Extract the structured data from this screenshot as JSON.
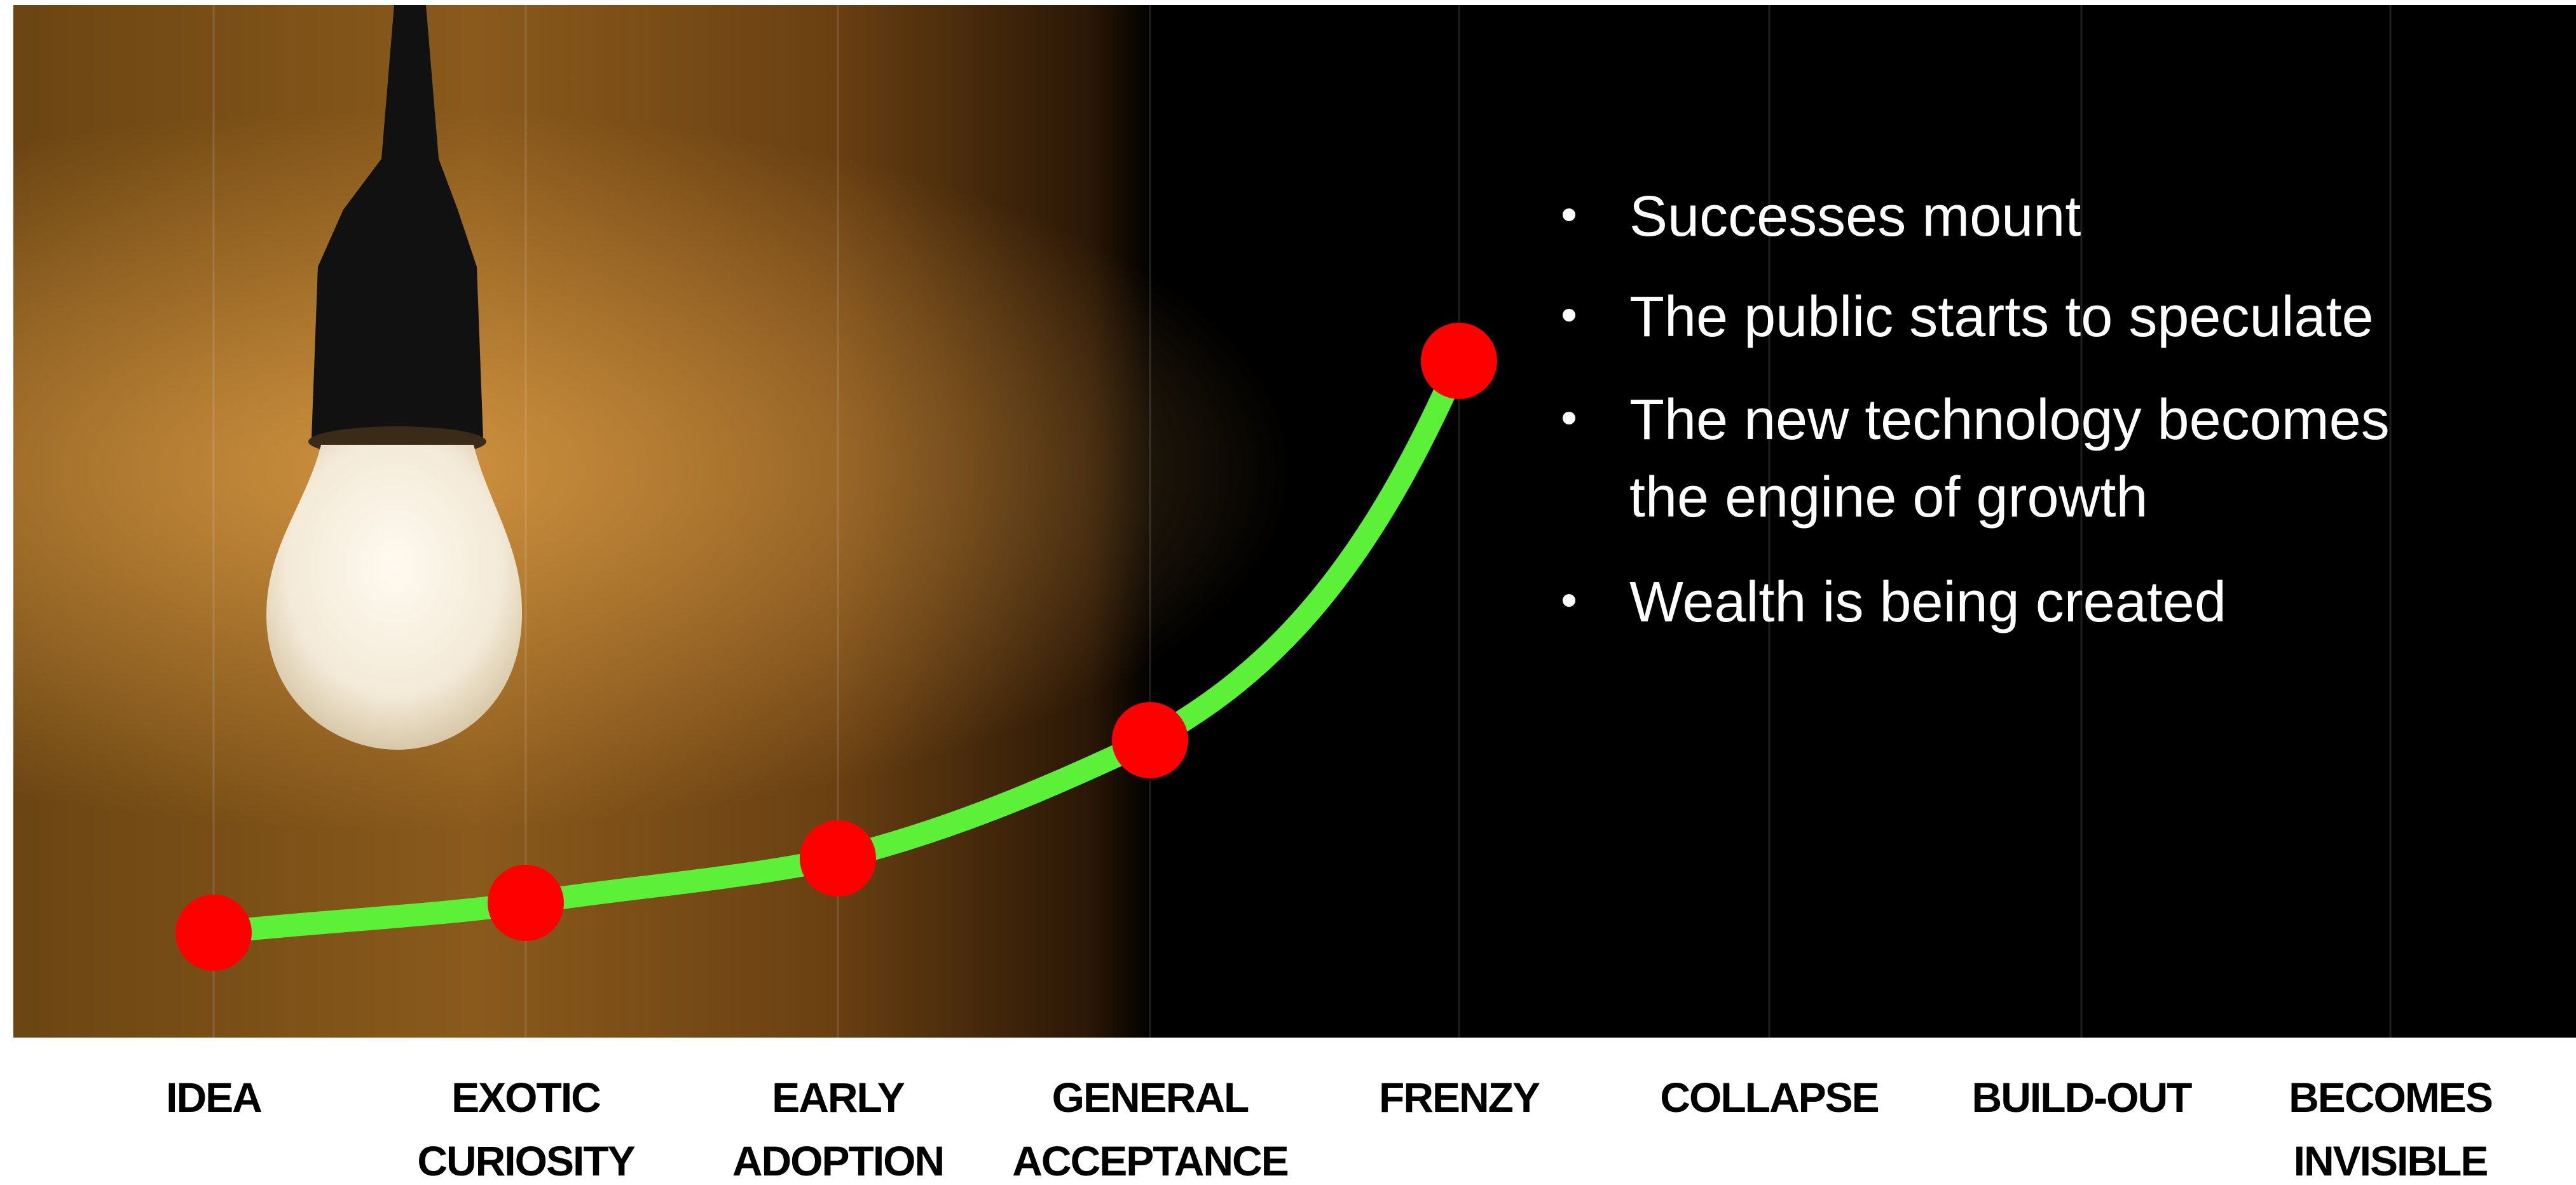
{
  "stages": [
    [
      "IDEA"
    ],
    [
      "EXOTIC",
      "CURIOSITY"
    ],
    [
      "EARLY",
      "ADOPTION"
    ],
    [
      "GENERAL",
      "ACCEPTANCE"
    ],
    [
      "FRENZY"
    ],
    [
      "COLLAPSE"
    ],
    [
      "BUILD-OUT"
    ],
    [
      "BECOMES",
      "INVISIBLE"
    ]
  ],
  "bullets": [
    [
      "Successes mount"
    ],
    [
      "The public starts to speculate"
    ],
    [
      "The new technology becomes",
      "the engine of growth"
    ],
    [
      "Wealth is being created"
    ]
  ]
}
